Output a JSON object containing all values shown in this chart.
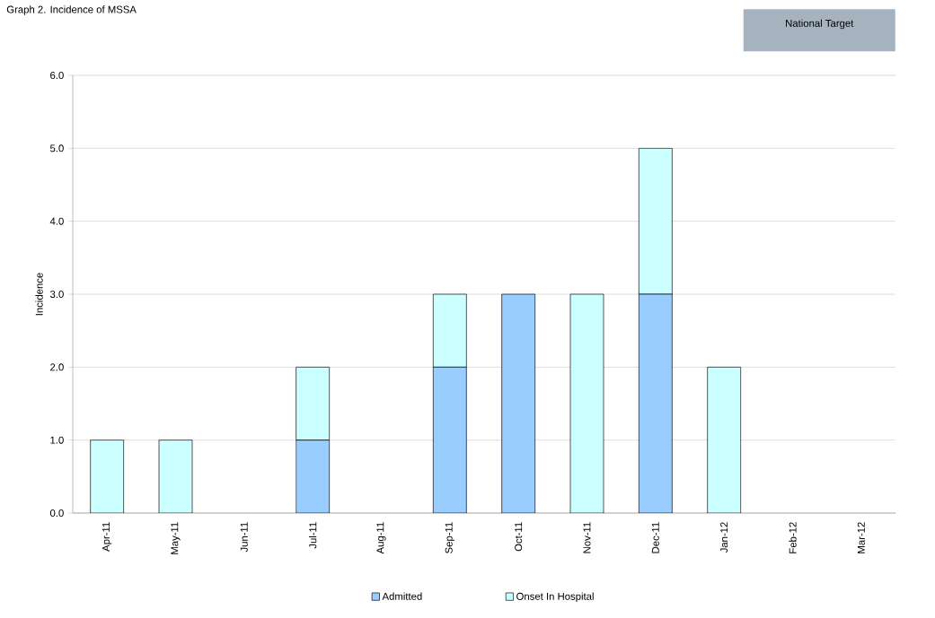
{
  "chart_data": {
    "type": "bar",
    "stacked": true,
    "title": "Graph 2. Incidence of MSSA",
    "ylabel": "Incidence",
    "annotations": [
      "National Target"
    ],
    "categories": [
      "Apr-11",
      "May-11",
      "Jun-11",
      "Jul-11",
      "Aug-11",
      "Sep-11",
      "Oct-11",
      "Nov-11",
      "Dec-11",
      "Jan-12",
      "Feb-12",
      "Mar-12"
    ],
    "series": [
      {
        "name": "Admitted",
        "color": "#99ccff",
        "values": [
          0,
          0,
          0,
          1,
          0,
          2,
          3,
          0,
          3,
          0,
          0,
          0
        ]
      },
      {
        "name": "Onset In Hospital",
        "color": "#ccffff",
        "values": [
          1,
          1,
          0,
          1,
          0,
          1,
          0,
          3,
          2,
          2,
          0,
          0
        ]
      }
    ],
    "ylim": [
      0,
      6
    ],
    "yticks": [
      {
        "value": 0,
        "label": "0.0"
      },
      {
        "value": 1,
        "label": "1.0"
      },
      {
        "value": 2,
        "label": "2.0"
      },
      {
        "value": 3,
        "label": "3.0"
      },
      {
        "value": 4,
        "label": "4.0"
      },
      {
        "value": 5,
        "label": "5.0"
      },
      {
        "value": 6,
        "label": "6.0"
      }
    ],
    "grid": "y",
    "legend": "bottom"
  }
}
